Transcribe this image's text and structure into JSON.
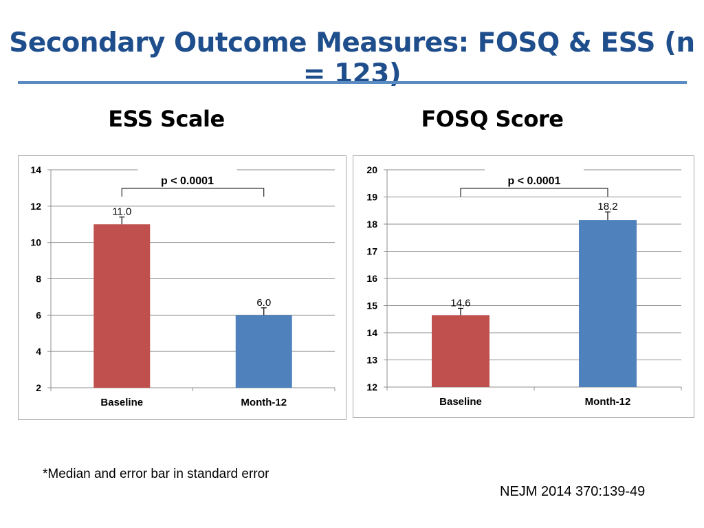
{
  "slide": {
    "title": "Secondary Outcome Measures: FOSQ & ESS (n = 123)",
    "footnote": "*Median and error bar in standard error",
    "citation": "NEJM 2014 370:139-49"
  },
  "colors": {
    "title": "#1f4e8c",
    "rule": "#5b8bc3",
    "baseline_bar": "#c0504d",
    "month12_bar": "#4f81bd"
  },
  "chart_data": [
    {
      "id": "ess",
      "type": "bar",
      "title": "ESS Scale",
      "categories": [
        "Baseline",
        "Month-12"
      ],
      "values": [
        11.0,
        6.0
      ],
      "value_labels": [
        "11.0",
        "6.0"
      ],
      "error_upper": [
        0.4,
        0.4
      ],
      "ylim": [
        2,
        14
      ],
      "yticks": [
        2,
        4,
        6,
        8,
        10,
        12,
        14
      ],
      "grid": true,
      "annotation": "p < 0.0001",
      "xlabel": "",
      "ylabel": ""
    },
    {
      "id": "fosq",
      "type": "bar",
      "title": "FOSQ Score",
      "categories": [
        "Baseline",
        "Month-12"
      ],
      "values": [
        14.65,
        18.15
      ],
      "value_labels": [
        "14.6",
        "18.2"
      ],
      "error_upper": [
        0.25,
        0.3
      ],
      "ylim": [
        12,
        20
      ],
      "yticks": [
        12,
        13,
        14,
        15,
        16,
        17,
        18,
        19,
        20
      ],
      "grid": true,
      "annotation": "p < 0.0001",
      "xlabel": "",
      "ylabel": ""
    }
  ]
}
